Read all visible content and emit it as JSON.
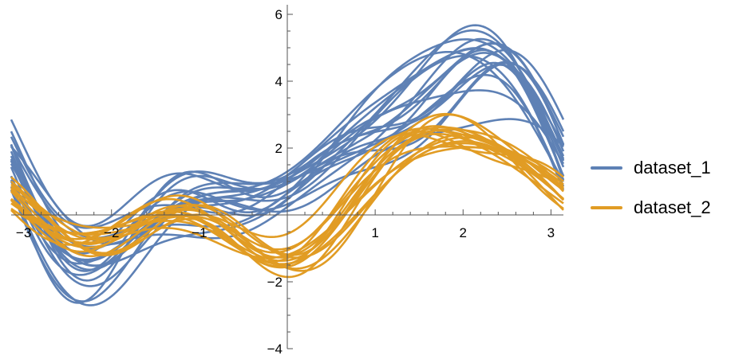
{
  "chart_data": {
    "type": "line",
    "title": "",
    "xlabel": "",
    "ylabel": "",
    "xlim": [
      -3.14159,
      3.14159
    ],
    "ylim": [
      -4,
      6.5
    ],
    "x_ticks": [
      -3,
      -2,
      -1,
      1,
      2,
      3
    ],
    "x_tick_labels": [
      "−3",
      "−2",
      "−1",
      "1",
      "2",
      "3"
    ],
    "y_ticks": [
      -4,
      -2,
      2,
      4,
      6
    ],
    "y_tick_labels": [
      "−4",
      "−2",
      "2",
      "4",
      "6"
    ],
    "grid": false,
    "legend_position": "right",
    "description_of_series": "Andrews curves: f(t) = x1/sqrt(2) + x2 sin t + x3 cos t + x4 sin 2t + x5 cos 2t + x6 sin 3t + x7 cos 3t",
    "series": [
      {
        "name": "dataset_1",
        "color": "#5e81b5",
        "coefficients": [
          [
            2.18,
            2.84,
            0.02,
            -1.21,
            -0.29,
            0.33,
            -0.2
          ],
          [
            2.34,
            3.01,
            -0.34,
            -0.91,
            -0.59,
            0.35,
            -0.27
          ],
          [
            2.83,
            1.73,
            -0.61,
            -0.89,
            0.02,
            0.66,
            -0.22
          ],
          [
            1.88,
            2.64,
            -0.94,
            -0.9,
            -0.33,
            0.37,
            0.18
          ],
          [
            1.76,
            2.1,
            0.12,
            -1.55,
            -0.36,
            0.78,
            -0.28
          ],
          [
            1.47,
            1.44,
            -0.57,
            -0.6,
            0.04,
            0.06,
            -0.39
          ],
          [
            2.12,
            2.38,
            -0.33,
            -1.1,
            -0.22,
            0.41,
            -0.02
          ],
          [
            1.63,
            2.92,
            0.1,
            -1.32,
            -0.46,
            0.21,
            -0.26
          ],
          [
            2.53,
            2.2,
            -0.74,
            -0.8,
            -0.1,
            0.55,
            0.09
          ],
          [
            1.95,
            1.85,
            -0.21,
            -1.4,
            0.15,
            0.7,
            -0.35
          ],
          [
            2.4,
            2.68,
            0.25,
            -0.75,
            -0.55,
            0.18,
            -0.1
          ],
          [
            1.7,
            2.45,
            -0.48,
            -1.05,
            -0.3,
            0.52,
            0.22
          ],
          [
            2.25,
            1.95,
            -0.05,
            -1.25,
            -0.05,
            0.62,
            -0.31
          ],
          [
            2.05,
            3.1,
            -0.62,
            -0.95,
            -0.4,
            0.28,
            0.05
          ],
          [
            1.55,
            2.25,
            0.3,
            -1.45,
            -0.2,
            0.45,
            -0.15
          ],
          [
            2.65,
            2.55,
            -0.4,
            -0.7,
            -0.25,
            0.3,
            -0.05
          ],
          [
            1.85,
            1.6,
            -0.85,
            -1.15,
            0.1,
            0.58,
            -0.24
          ],
          [
            2.3,
            2.8,
            -0.15,
            -1.35,
            -0.5,
            0.4,
            0.12
          ],
          [
            1.98,
            2.15,
            0.05,
            -0.85,
            -0.15,
            0.25,
            -0.33
          ],
          [
            2.45,
            2.35,
            -0.55,
            -1.0,
            -0.35,
            0.68,
            -0.18
          ]
        ]
      },
      {
        "name": "dataset_2",
        "color": "#e19c24",
        "coefficients": [
          [
            0.58,
            1.4,
            -0.8,
            -0.51,
            -0.76,
            0.12,
            -0.34
          ],
          [
            0.38,
            1.22,
            -0.83,
            -0.71,
            -0.97,
            -0.26,
            -0.06
          ],
          [
            0.81,
            1.52,
            -0.33,
            -0.29,
            -0.29,
            0.04,
            -0.52
          ],
          [
            0.29,
            1.34,
            -0.73,
            -0.44,
            -0.58,
            0.13,
            -0.09
          ],
          [
            0.44,
            0.89,
            -0.8,
            -0.79,
            -0.87,
            0.03,
            -0.22
          ],
          [
            0.61,
            1.24,
            -0.66,
            -0.27,
            -0.74,
            -0.07,
            -0.51
          ],
          [
            0.35,
            1.1,
            -0.55,
            -0.6,
            -0.65,
            0.2,
            -0.3
          ],
          [
            0.72,
            1.45,
            -0.9,
            -0.4,
            -0.82,
            -0.1,
            -0.15
          ],
          [
            0.5,
            1.3,
            -0.45,
            -0.55,
            -0.5,
            0.15,
            -0.4
          ],
          [
            0.42,
            1.18,
            -0.7,
            -0.35,
            -0.9,
            0.0,
            -0.25
          ],
          [
            0.66,
            1.38,
            -0.6,
            -0.65,
            -0.6,
            -0.18,
            -0.45
          ],
          [
            0.3,
            1.05,
            -0.85,
            -0.48,
            -0.7,
            0.08,
            -0.12
          ],
          [
            0.55,
            1.5,
            -0.5,
            -0.3,
            -0.8,
            0.1,
            -0.38
          ],
          [
            0.47,
            0.95,
            -0.75,
            -0.7,
            -0.55,
            -0.05,
            -0.28
          ],
          [
            0.7,
            1.28,
            -0.4,
            -0.45,
            -0.95,
            0.18,
            -0.2
          ],
          [
            0.36,
            1.42,
            -0.95,
            -0.58,
            -0.68,
            -0.12,
            -0.48
          ]
        ]
      }
    ]
  },
  "legend": {
    "items": [
      {
        "label": "dataset_1",
        "color": "#5e81b5"
      },
      {
        "label": "dataset_2",
        "color": "#e19c24"
      }
    ]
  }
}
